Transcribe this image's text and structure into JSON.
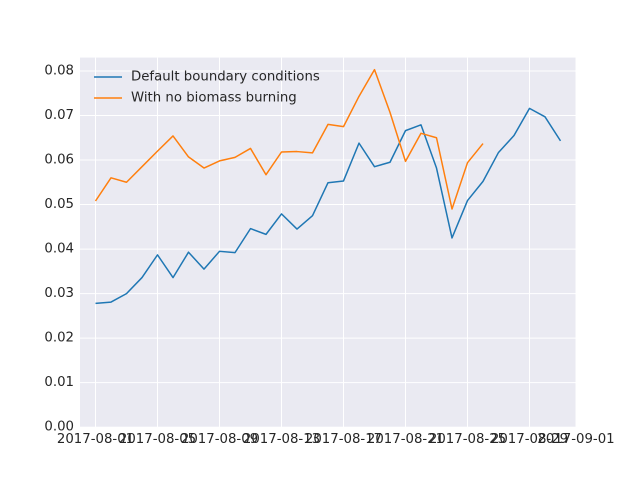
{
  "chart_data": {
    "type": "line",
    "title": "",
    "xlabel": "",
    "ylabel": "",
    "x_type": "date",
    "xlim": [
      "2017-07-31",
      "2017-09-01"
    ],
    "ylim": [
      0,
      0.083
    ],
    "x_ticks": [
      "2017-08-01",
      "2017-08-05",
      "2017-08-09",
      "2017-08-13",
      "2017-08-17",
      "2017-08-21",
      "2017-08-25",
      "2017-08-29",
      "2017-09-01"
    ],
    "y_ticks": [
      "0.00",
      "0.01",
      "0.02",
      "0.03",
      "0.04",
      "0.05",
      "0.06",
      "0.07",
      "0.08"
    ],
    "grid": true,
    "legend_position": "top-left",
    "series": [
      {
        "name": "Default boundary conditions",
        "color": "#1f77b4",
        "points": [
          [
            "2017-08-01",
            0.0278
          ],
          [
            "2017-08-02",
            0.0281
          ],
          [
            "2017-08-03",
            0.03
          ],
          [
            "2017-08-04",
            0.0336
          ],
          [
            "2017-08-05",
            0.0387
          ],
          [
            "2017-08-06",
            0.0336
          ],
          [
            "2017-08-07",
            0.0393
          ],
          [
            "2017-08-08",
            0.0355
          ],
          [
            "2017-08-09",
            0.0395
          ],
          [
            "2017-08-10",
            0.0392
          ],
          [
            "2017-08-11",
            0.0446
          ],
          [
            "2017-08-12",
            0.0433
          ],
          [
            "2017-08-13",
            0.0479
          ],
          [
            "2017-08-14",
            0.0445
          ],
          [
            "2017-08-15",
            0.0475
          ],
          [
            "2017-08-16",
            0.0549
          ],
          [
            "2017-08-17",
            0.0553
          ],
          [
            "2017-08-18",
            0.0638
          ],
          [
            "2017-08-19",
            0.0585
          ],
          [
            "2017-08-20",
            0.0595
          ],
          [
            "2017-08-21",
            0.0666
          ],
          [
            "2017-08-22",
            0.0679
          ],
          [
            "2017-08-23",
            0.0582
          ],
          [
            "2017-08-24",
            0.0425
          ],
          [
            "2017-08-25",
            0.0509
          ],
          [
            "2017-08-26",
            0.0552
          ],
          [
            "2017-08-27",
            0.0617
          ],
          [
            "2017-08-28",
            0.0655
          ],
          [
            "2017-08-29",
            0.0716
          ],
          [
            "2017-08-30",
            0.0697
          ],
          [
            "2017-08-31",
            0.0643
          ]
        ]
      },
      {
        "name": "With no biomass burning",
        "color": "#ff7f0e",
        "points": [
          [
            "2017-08-01",
            0.0508
          ],
          [
            "2017-08-02",
            0.056
          ],
          [
            "2017-08-03",
            0.055
          ],
          [
            "2017-08-04",
            0.0585
          ],
          [
            "2017-08-05",
            0.062
          ],
          [
            "2017-08-06",
            0.0654
          ],
          [
            "2017-08-07",
            0.0607
          ],
          [
            "2017-08-08",
            0.0582
          ],
          [
            "2017-08-09",
            0.0598
          ],
          [
            "2017-08-10",
            0.0606
          ],
          [
            "2017-08-11",
            0.0626
          ],
          [
            "2017-08-12",
            0.0567
          ],
          [
            "2017-08-13",
            0.0618
          ],
          [
            "2017-08-14",
            0.0619
          ],
          [
            "2017-08-15",
            0.0616
          ],
          [
            "2017-08-16",
            0.068
          ],
          [
            "2017-08-17",
            0.0675
          ],
          [
            "2017-08-18",
            0.0743
          ],
          [
            "2017-08-19",
            0.0803
          ],
          [
            "2017-08-20",
            0.0707
          ],
          [
            "2017-08-21",
            0.0597
          ],
          [
            "2017-08-22",
            0.066
          ],
          [
            "2017-08-23",
            0.065
          ],
          [
            "2017-08-24",
            0.049
          ],
          [
            "2017-08-25",
            0.0594
          ],
          [
            "2017-08-26",
            0.0637
          ]
        ]
      }
    ]
  }
}
